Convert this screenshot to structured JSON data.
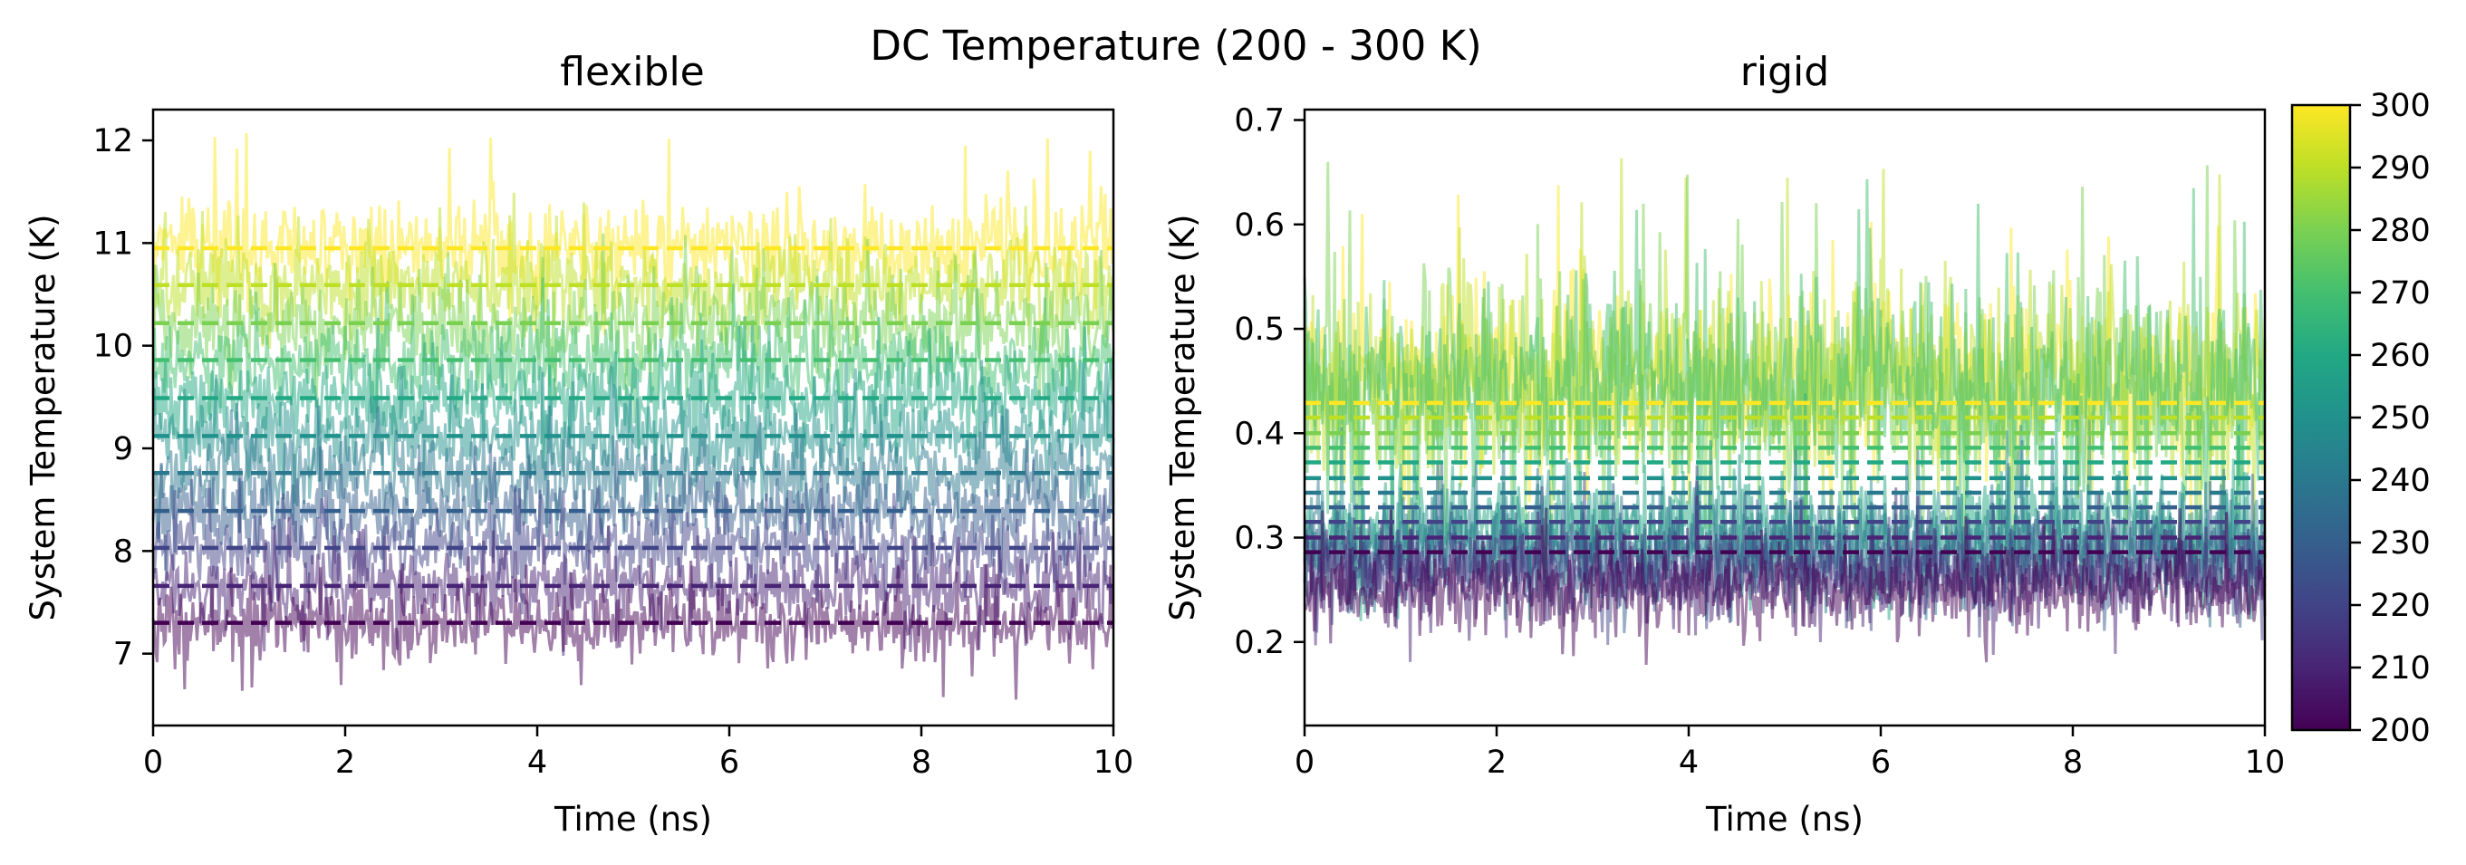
{
  "figure": {
    "suptitle": "DC Temperature (200 - 300 K)"
  },
  "colorbar": {
    "vmin": 200,
    "vmax": 300,
    "colormap": "viridis",
    "ticks": [
      "200",
      "210",
      "220",
      "230",
      "240",
      "250",
      "260",
      "270",
      "280",
      "290",
      "300"
    ]
  },
  "chart_data": [
    {
      "type": "line",
      "title": "flexible",
      "xlabel": "Time (ns)",
      "ylabel": "System Temperature (K)",
      "xlim": [
        0,
        10
      ],
      "ylim": [
        6.3,
        12.3
      ],
      "xticks": [
        "0",
        "2",
        "4",
        "6",
        "8",
        "10"
      ],
      "yticks": [
        "7",
        "8",
        "9",
        "10",
        "11",
        "12"
      ],
      "grid": false,
      "series_note_colors_by_bath_temperature": true,
      "series": [
        {
          "bath_temperature": 200,
          "mean": 7.3,
          "fluct_sd": 0.18,
          "peak": 7.95,
          "trough": 6.55
        },
        {
          "bath_temperature": 210,
          "mean": 7.66,
          "fluct_sd": 0.18,
          "peak": 8.35,
          "trough": 6.95
        },
        {
          "bath_temperature": 220,
          "mean": 8.03,
          "fluct_sd": 0.19,
          "peak": 8.75,
          "trough": 7.3
        },
        {
          "bath_temperature": 230,
          "mean": 8.39,
          "fluct_sd": 0.19,
          "peak": 9.1,
          "trough": 7.65
        },
        {
          "bath_temperature": 240,
          "mean": 8.76,
          "fluct_sd": 0.2,
          "peak": 9.5,
          "trough": 8.0
        },
        {
          "bath_temperature": 250,
          "mean": 9.12,
          "fluct_sd": 0.2,
          "peak": 9.9,
          "trough": 8.35
        },
        {
          "bath_temperature": 260,
          "mean": 9.49,
          "fluct_sd": 0.21,
          "peak": 10.3,
          "trough": 8.7
        },
        {
          "bath_temperature": 270,
          "mean": 9.86,
          "fluct_sd": 0.21,
          "peak": 10.7,
          "trough": 9.05
        },
        {
          "bath_temperature": 280,
          "mean": 10.22,
          "fluct_sd": 0.22,
          "peak": 11.1,
          "trough": 9.4
        },
        {
          "bath_temperature": 290,
          "mean": 10.59,
          "fluct_sd": 0.22,
          "peak": 11.5,
          "trough": 9.75
        },
        {
          "bath_temperature": 300,
          "mean": 10.95,
          "fluct_sd": 0.23,
          "peak": 12.1,
          "trough": 10.05
        }
      ]
    },
    {
      "type": "line",
      "title": "rigid",
      "xlabel": "Time (ns)",
      "ylabel": "System Temperature (K)",
      "xlim": [
        0,
        10
      ],
      "ylim": [
        0.12,
        0.71
      ],
      "xticks": [
        "0",
        "2",
        "4",
        "6",
        "8",
        "10"
      ],
      "yticks": [
        "0.2",
        "0.3",
        "0.4",
        "0.5",
        "0.6",
        "0.7"
      ],
      "grid": false,
      "series": [
        {
          "bath_temperature": 200,
          "mean": 0.286,
          "fluct_center": 0.25,
          "fluct_sd": 0.02,
          "peak": 0.33,
          "trough": 0.17
        },
        {
          "bath_temperature": 210,
          "mean": 0.3,
          "fluct_center": 0.26,
          "fluct_sd": 0.021,
          "peak": 0.35,
          "trough": 0.18
        },
        {
          "bath_temperature": 220,
          "mean": 0.315,
          "fluct_center": 0.27,
          "fluct_sd": 0.022,
          "peak": 0.37,
          "trough": 0.19
        },
        {
          "bath_temperature": 230,
          "mean": 0.329,
          "fluct_center": 0.28,
          "fluct_sd": 0.023,
          "peak": 0.38,
          "trough": 0.2
        },
        {
          "bath_temperature": 240,
          "mean": 0.343,
          "fluct_center": 0.29,
          "fluct_sd": 0.024,
          "peak": 0.4,
          "trough": 0.21
        },
        {
          "bath_temperature": 250,
          "mean": 0.357,
          "fluct_center": 0.3,
          "fluct_sd": 0.026,
          "peak": 0.42,
          "trough": 0.22
        },
        {
          "bath_temperature": 260,
          "mean": 0.372,
          "fluct_center": 0.31,
          "fluct_sd": 0.028,
          "peak": 0.45,
          "trough": 0.22
        },
        {
          "bath_temperature": 270,
          "mean": 0.386,
          "fluct_center": 0.44,
          "fluct_sd": 0.05,
          "peak": 0.65,
          "trough": 0.25
        },
        {
          "bath_temperature": 280,
          "mean": 0.4,
          "fluct_center": 0.44,
          "fluct_sd": 0.05,
          "peak": 0.66,
          "trough": 0.26
        },
        {
          "bath_temperature": 290,
          "mean": 0.415,
          "fluct_center": 0.45,
          "fluct_sd": 0.05,
          "peak": 0.68,
          "trough": 0.27
        },
        {
          "bath_temperature": 300,
          "mean": 0.429,
          "fluct_center": 0.45,
          "fluct_sd": 0.045,
          "peak": 0.64,
          "trough": 0.3
        }
      ]
    }
  ]
}
